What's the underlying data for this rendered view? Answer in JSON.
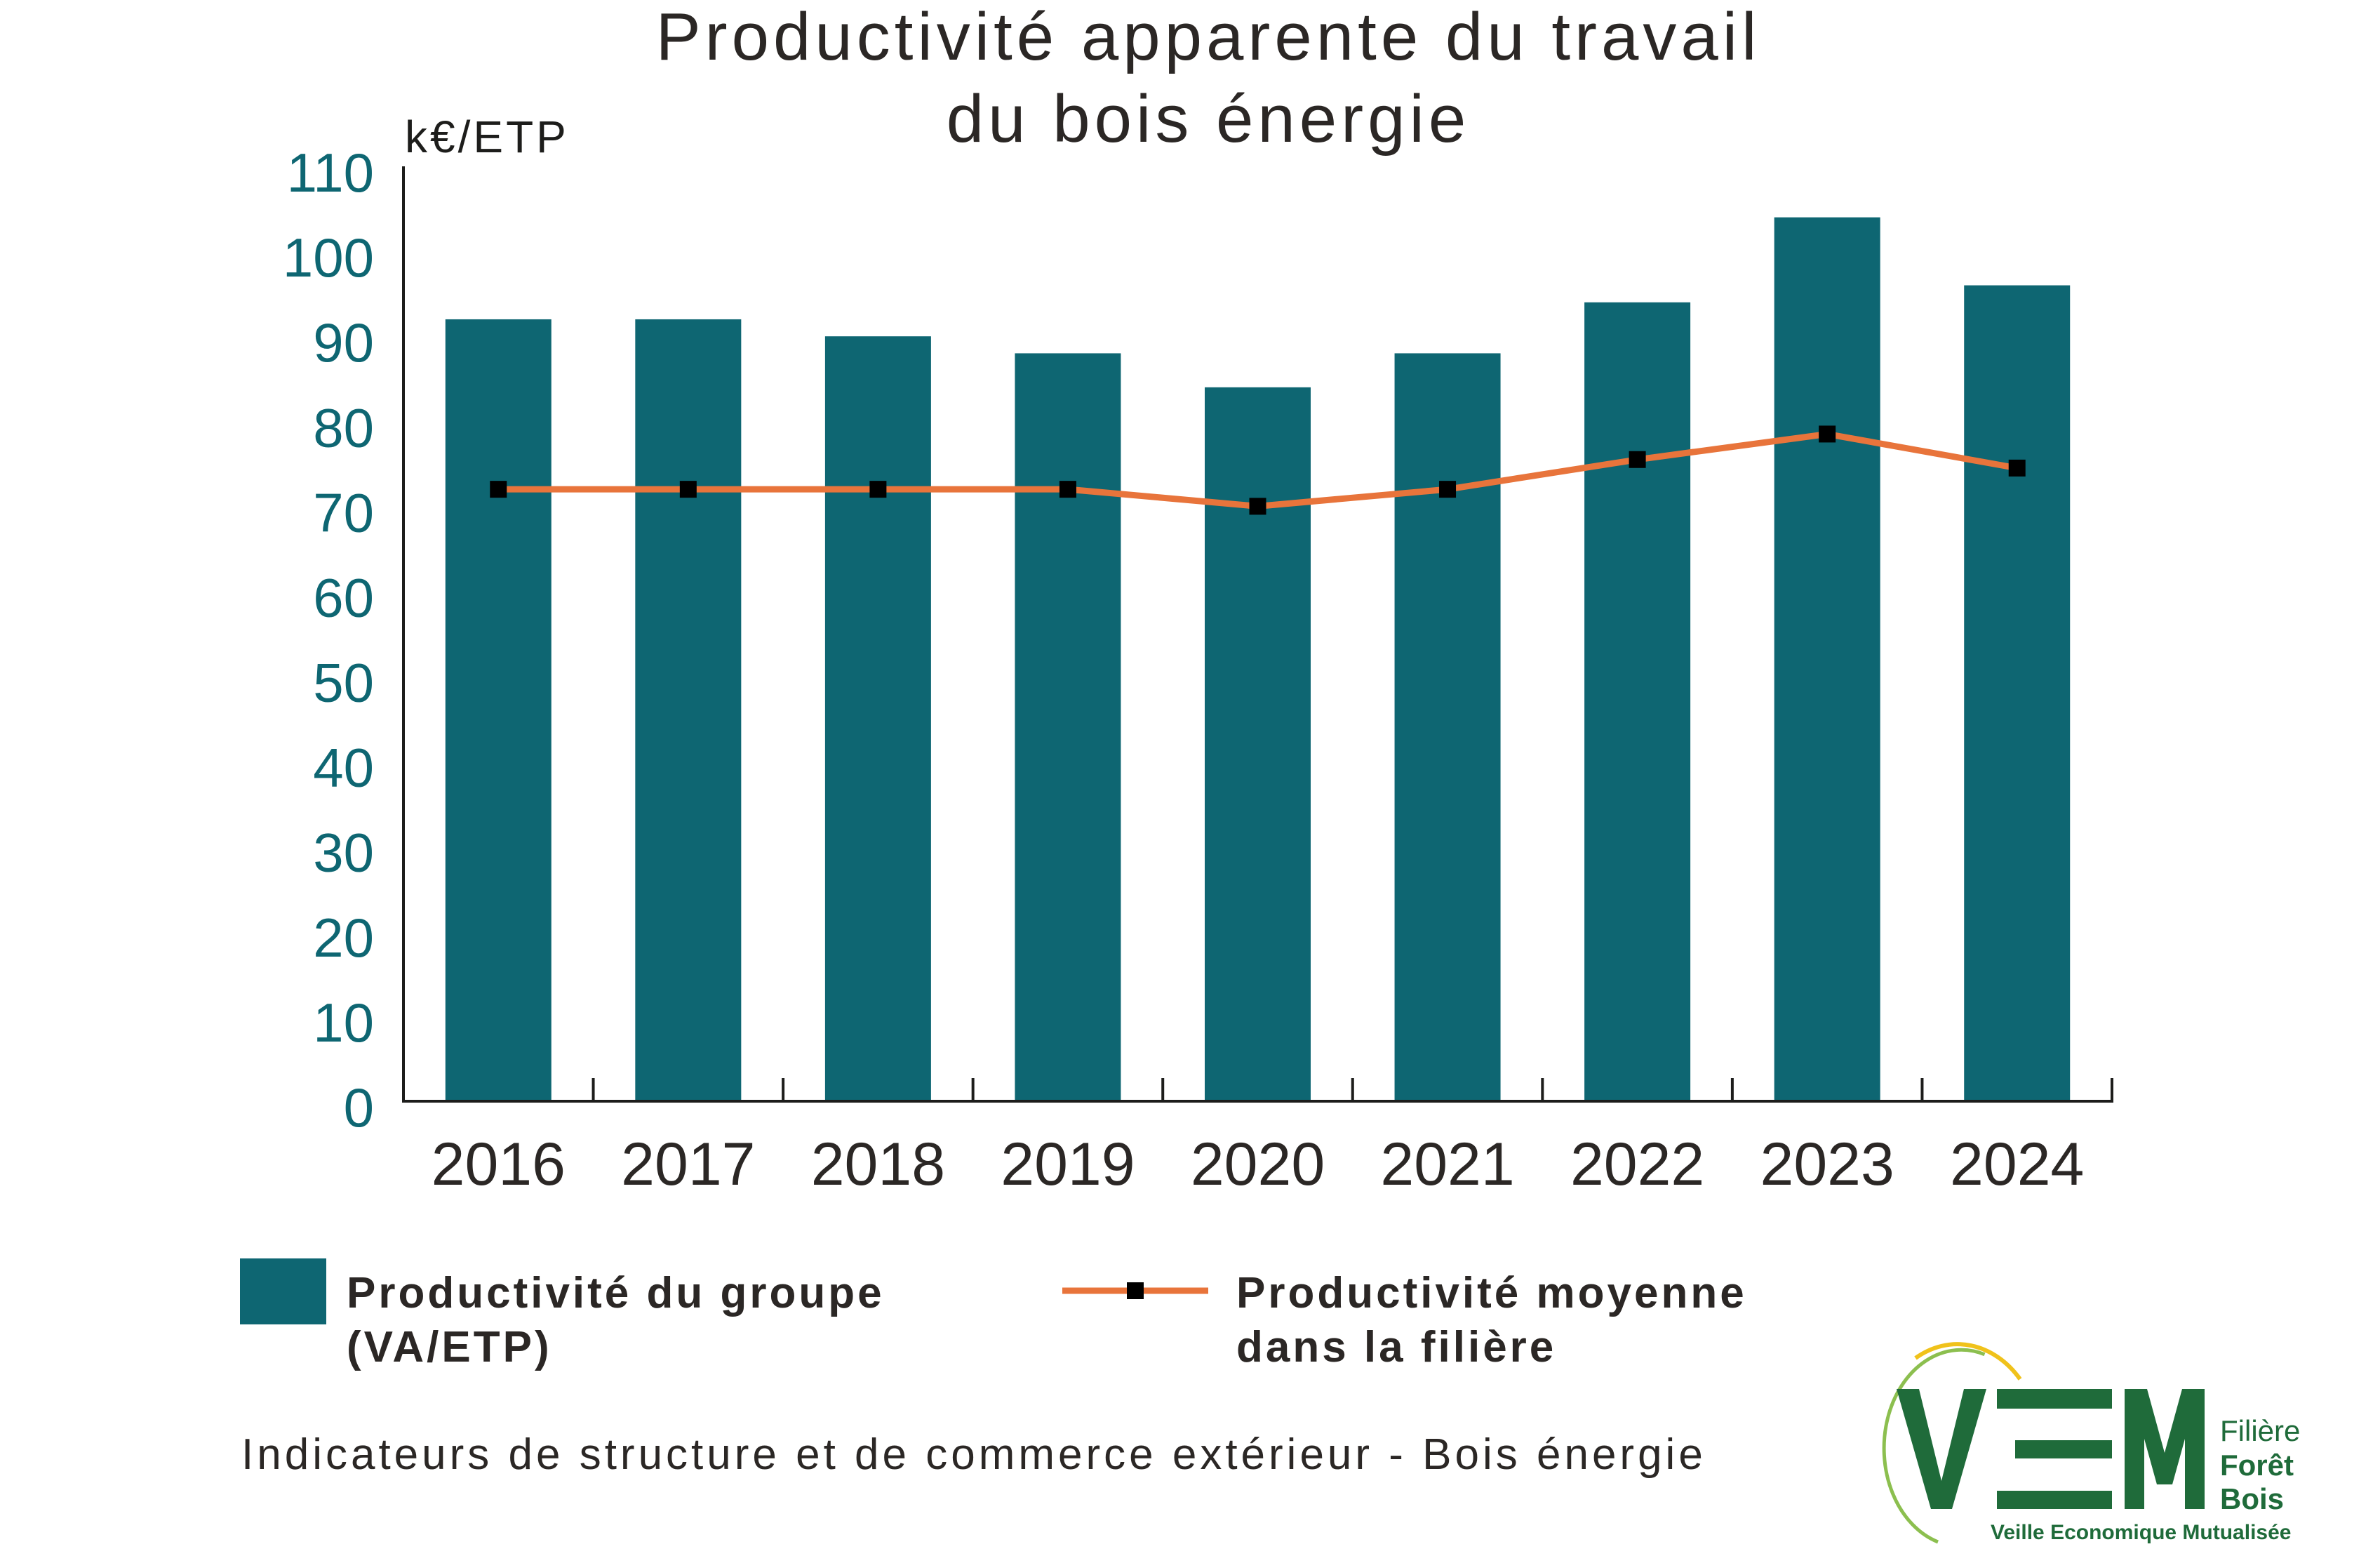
{
  "chart_data": {
    "type": "bar",
    "title": "Productivité apparente du travail\ndu bois énergie",
    "ylabel": "k€/ETP",
    "xlabel": "",
    "categories": [
      "2016",
      "2017",
      "2018",
      "2019",
      "2020",
      "2021",
      "2022",
      "2023",
      "2024"
    ],
    "series": [
      {
        "name": "Productivité du groupe\n(VA/ETP)",
        "type": "bar",
        "color": "#0e6672",
        "values": [
          92,
          92,
          90,
          88,
          84,
          88,
          94,
          104,
          96
        ]
      },
      {
        "name": "Productivité moyenne\ndans la filière",
        "type": "line",
        "color": "#e8743b",
        "marker_color": "#000000",
        "values": [
          72,
          72,
          72,
          72,
          70,
          72,
          75.5,
          78.5,
          74.5
        ]
      }
    ],
    "ylim": [
      0,
      110
    ],
    "yticks": [
      0,
      10,
      20,
      30,
      40,
      50,
      60,
      70,
      80,
      90,
      100,
      110
    ],
    "grid": false,
    "legend_position": "bottom",
    "axis_color": "#1d1d1b",
    "xtick_color": "#2b2725",
    "ytick_color": "#0e6672"
  },
  "footer": {
    "source": "Indicateurs de structure et de commerce extérieur - Bois énergie"
  },
  "logo": {
    "letters": "VEM",
    "side_text": [
      "Filière",
      "Forêt",
      "Bois"
    ],
    "tagline": "Veille Economique Mutualisée",
    "green": "#1f6b3a",
    "light_green": "#8cbf4f",
    "yellow": "#f0c21b"
  }
}
